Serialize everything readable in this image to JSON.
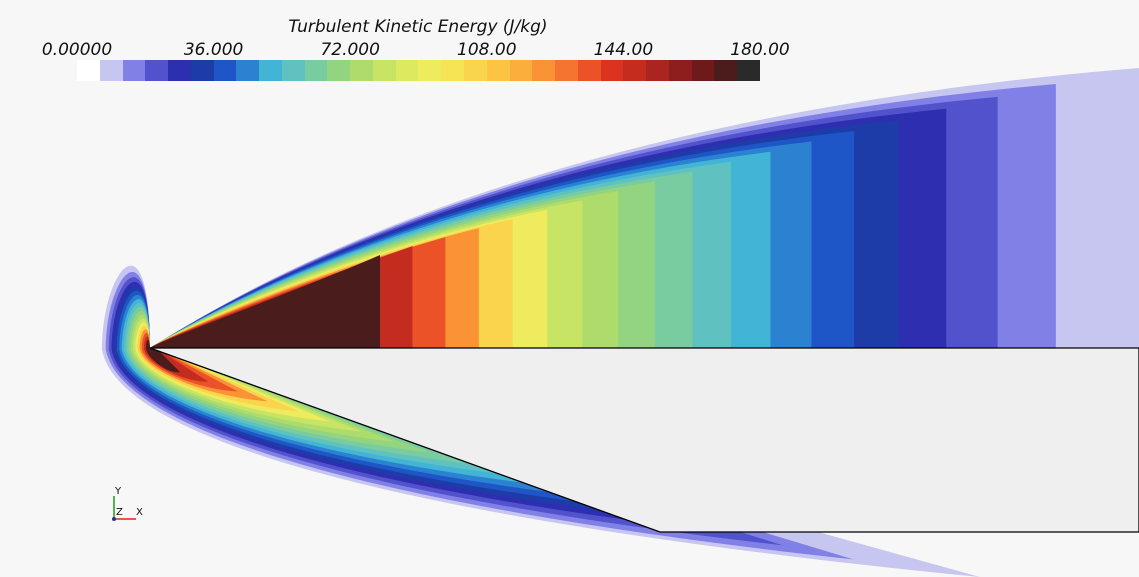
{
  "chart_data": {
    "type": "heatmap",
    "title": "Turbulent Kinetic Energy (J/kg)",
    "scalar_range": [
      0.0,
      180.0
    ],
    "tick_labels": [
      "0.00000",
      "36.000",
      "72.000",
      "108.00",
      "144.00",
      "180.00"
    ],
    "tick_values": [
      0,
      36,
      72,
      108,
      144,
      180
    ],
    "colormap": [
      "#ffffff",
      "#c6c6f0",
      "#8080e6",
      "#5252cc",
      "#2e2eb0",
      "#1e3ca8",
      "#1e56c8",
      "#2a82d0",
      "#42b4d6",
      "#60c2c0",
      "#78cca0",
      "#92d480",
      "#aedc6c",
      "#c8e464",
      "#dcea60",
      "#eeec5e",
      "#f6e454",
      "#fad44c",
      "#fcc442",
      "#fcae3c",
      "#fa9236",
      "#f47430",
      "#ec5228",
      "#dc3220",
      "#c42c20",
      "#aa2420",
      "#8e1e1e",
      "#6e1a1a",
      "#4a1c1c",
      "#2a2a2a"
    ],
    "contours": [
      {
        "level": 10,
        "color": "#c6c6f0"
      },
      {
        "level": 17,
        "color": "#8080e6"
      },
      {
        "level": 24,
        "color": "#5252cc"
      },
      {
        "level": 31,
        "color": "#2e2eb0"
      },
      {
        "level": 38,
        "color": "#1e3ca8"
      },
      {
        "level": 45,
        "color": "#1e56c8"
      },
      {
        "level": 52,
        "color": "#2a82d0"
      },
      {
        "level": 60,
        "color": "#42b4d6"
      },
      {
        "level": 68,
        "color": "#60c2c0"
      },
      {
        "level": 76,
        "color": "#78cca0"
      },
      {
        "level": 84,
        "color": "#92d480"
      },
      {
        "level": 92,
        "color": "#aedc6c"
      },
      {
        "level": 100,
        "color": "#c8e464"
      },
      {
        "level": 110,
        "color": "#eeec5e"
      },
      {
        "level": 122,
        "color": "#fad44c"
      },
      {
        "level": 136,
        "color": "#fa9236"
      },
      {
        "level": 152,
        "color": "#ec5228"
      },
      {
        "level": 166,
        "color": "#c42c20"
      },
      {
        "level": 180,
        "color": "#4a1c1c"
      }
    ],
    "axes": {
      "y_label": "Y",
      "z_label": "Z",
      "x_label": "X"
    }
  }
}
